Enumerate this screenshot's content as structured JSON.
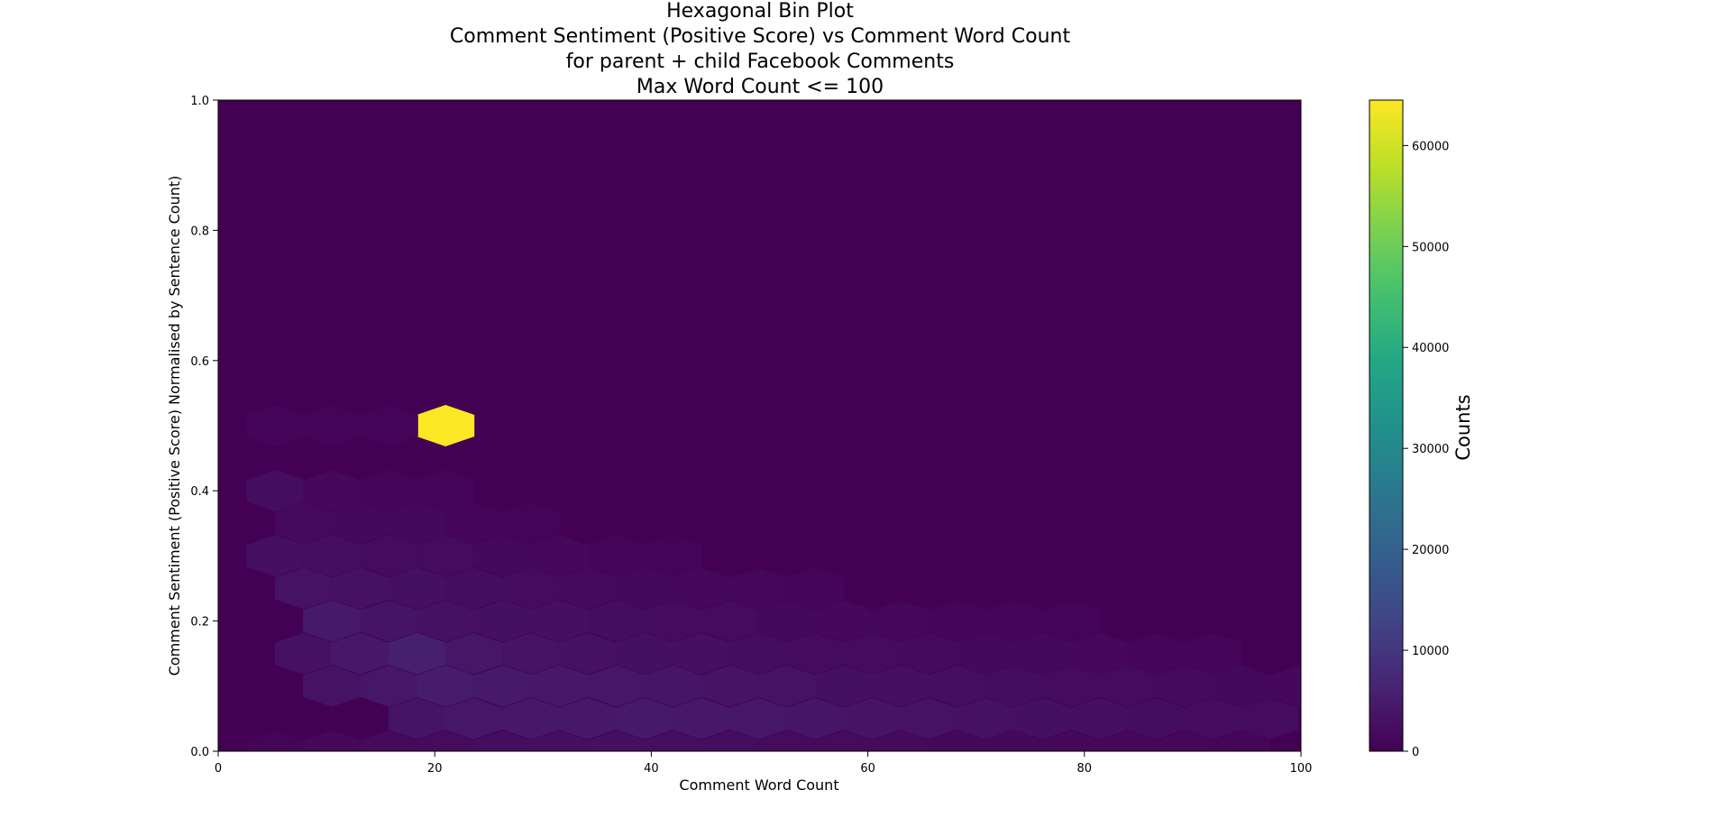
{
  "chart_data": {
    "type": "heatmap",
    "subtype": "hexbin",
    "title_lines": [
      "Hexagonal Bin Plot",
      "Comment Sentiment (Positive Score) vs Comment Word Count",
      "for parent + child Facebook Comments",
      "Max Word Count <= 100"
    ],
    "xlabel": "Comment Word Count",
    "ylabel": "Comment Sentiment (Positive Score) Normalised by Sentence Count)",
    "xlim": [
      0,
      100
    ],
    "ylim": [
      0,
      1.0
    ],
    "xticks": [
      0,
      20,
      40,
      60,
      80,
      100
    ],
    "yticks": [
      0.0,
      0.2,
      0.4,
      0.6,
      0.8,
      1.0
    ],
    "ytick_labels": [
      "0.0",
      "0.2",
      "0.4",
      "0.6",
      "0.8",
      "1.0"
    ],
    "grid": false,
    "colormap": "viridis",
    "colorbar": {
      "label": "Counts",
      "range": [
        0,
        64500
      ],
      "ticks": [
        0,
        10000,
        20000,
        30000,
        40000,
        50000,
        60000
      ]
    },
    "bins": [
      {
        "x": 21,
        "y": 0.5,
        "count": 64500
      },
      {
        "x": 5.3,
        "y": 0.5,
        "count": 900
      },
      {
        "x": 10.5,
        "y": 0.5,
        "count": 800
      },
      {
        "x": 15.8,
        "y": 0.5,
        "count": 700
      },
      {
        "x": 5.3,
        "y": 0.4,
        "count": 2200
      },
      {
        "x": 10.5,
        "y": 0.4,
        "count": 1200
      },
      {
        "x": 15.8,
        "y": 0.4,
        "count": 1000
      },
      {
        "x": 21,
        "y": 0.4,
        "count": 900
      },
      {
        "x": 7.9,
        "y": 0.35,
        "count": 1600
      },
      {
        "x": 13.1,
        "y": 0.35,
        "count": 1400
      },
      {
        "x": 18.4,
        "y": 0.35,
        "count": 1400
      },
      {
        "x": 23.6,
        "y": 0.35,
        "count": 1000
      },
      {
        "x": 28.9,
        "y": 0.35,
        "count": 800
      },
      {
        "x": 5.3,
        "y": 0.3,
        "count": 2600
      },
      {
        "x": 10.5,
        "y": 0.3,
        "count": 2400
      },
      {
        "x": 15.8,
        "y": 0.3,
        "count": 2000
      },
      {
        "x": 21,
        "y": 0.3,
        "count": 1800
      },
      {
        "x": 26.3,
        "y": 0.3,
        "count": 1500
      },
      {
        "x": 31.5,
        "y": 0.3,
        "count": 1300
      },
      {
        "x": 36.8,
        "y": 0.3,
        "count": 1000
      },
      {
        "x": 42,
        "y": 0.3,
        "count": 800
      },
      {
        "x": 7.9,
        "y": 0.25,
        "count": 3200
      },
      {
        "x": 13.1,
        "y": 0.25,
        "count": 2900
      },
      {
        "x": 18.4,
        "y": 0.25,
        "count": 2700
      },
      {
        "x": 23.6,
        "y": 0.25,
        "count": 2300
      },
      {
        "x": 28.9,
        "y": 0.25,
        "count": 2000
      },
      {
        "x": 34.1,
        "y": 0.25,
        "count": 1700
      },
      {
        "x": 39.4,
        "y": 0.25,
        "count": 1500
      },
      {
        "x": 44.6,
        "y": 0.25,
        "count": 1300
      },
      {
        "x": 49.9,
        "y": 0.25,
        "count": 1100
      },
      {
        "x": 55.1,
        "y": 0.25,
        "count": 900
      },
      {
        "x": 10.5,
        "y": 0.2,
        "count": 4500
      },
      {
        "x": 15.8,
        "y": 0.2,
        "count": 3500
      },
      {
        "x": 21,
        "y": 0.2,
        "count": 3000
      },
      {
        "x": 26.3,
        "y": 0.2,
        "count": 2800
      },
      {
        "x": 31.5,
        "y": 0.2,
        "count": 2500
      },
      {
        "x": 36.8,
        "y": 0.2,
        "count": 2200
      },
      {
        "x": 42,
        "y": 0.2,
        "count": 2000
      },
      {
        "x": 47.3,
        "y": 0.2,
        "count": 1800
      },
      {
        "x": 52.5,
        "y": 0.2,
        "count": 1500
      },
      {
        "x": 57.8,
        "y": 0.2,
        "count": 1300
      },
      {
        "x": 63,
        "y": 0.2,
        "count": 1100
      },
      {
        "x": 68.3,
        "y": 0.2,
        "count": 1000
      },
      {
        "x": 73.5,
        "y": 0.2,
        "count": 900
      },
      {
        "x": 78.8,
        "y": 0.2,
        "count": 800
      },
      {
        "x": 7.9,
        "y": 0.15,
        "count": 3000
      },
      {
        "x": 13.1,
        "y": 0.15,
        "count": 4200
      },
      {
        "x": 18.4,
        "y": 0.15,
        "count": 5500
      },
      {
        "x": 23.6,
        "y": 0.15,
        "count": 3800
      },
      {
        "x": 28.9,
        "y": 0.15,
        "count": 3300
      },
      {
        "x": 34.1,
        "y": 0.15,
        "count": 3000
      },
      {
        "x": 39.4,
        "y": 0.15,
        "count": 2800
      },
      {
        "x": 44.6,
        "y": 0.15,
        "count": 2500
      },
      {
        "x": 49.9,
        "y": 0.15,
        "count": 2300
      },
      {
        "x": 55.1,
        "y": 0.15,
        "count": 2000
      },
      {
        "x": 60.4,
        "y": 0.15,
        "count": 1800
      },
      {
        "x": 65.6,
        "y": 0.15,
        "count": 1700
      },
      {
        "x": 70.9,
        "y": 0.15,
        "count": 1500
      },
      {
        "x": 76.1,
        "y": 0.15,
        "count": 1400
      },
      {
        "x": 81.4,
        "y": 0.15,
        "count": 1200
      },
      {
        "x": 86.6,
        "y": 0.15,
        "count": 1000
      },
      {
        "x": 91.9,
        "y": 0.15,
        "count": 900
      },
      {
        "x": 10.5,
        "y": 0.1,
        "count": 3200
      },
      {
        "x": 15.8,
        "y": 0.1,
        "count": 4000
      },
      {
        "x": 21,
        "y": 0.1,
        "count": 4800
      },
      {
        "x": 26.3,
        "y": 0.1,
        "count": 4500
      },
      {
        "x": 31.5,
        "y": 0.1,
        "count": 4200
      },
      {
        "x": 36.8,
        "y": 0.1,
        "count": 3900
      },
      {
        "x": 42,
        "y": 0.1,
        "count": 3700
      },
      {
        "x": 47.3,
        "y": 0.1,
        "count": 3400
      },
      {
        "x": 52.5,
        "y": 0.1,
        "count": 3100
      },
      {
        "x": 57.8,
        "y": 0.1,
        "count": 2800
      },
      {
        "x": 63,
        "y": 0.1,
        "count": 2600
      },
      {
        "x": 68.3,
        "y": 0.1,
        "count": 2400
      },
      {
        "x": 73.5,
        "y": 0.1,
        "count": 2200
      },
      {
        "x": 78.8,
        "y": 0.1,
        "count": 2000
      },
      {
        "x": 84,
        "y": 0.1,
        "count": 1800
      },
      {
        "x": 89.3,
        "y": 0.1,
        "count": 1600
      },
      {
        "x": 94.5,
        "y": 0.1,
        "count": 1400
      },
      {
        "x": 99.8,
        "y": 0.1,
        "count": 1200
      },
      {
        "x": 18.4,
        "y": 0.05,
        "count": 3500
      },
      {
        "x": 23.6,
        "y": 0.05,
        "count": 4000
      },
      {
        "x": 28.9,
        "y": 0.05,
        "count": 4200
      },
      {
        "x": 34.1,
        "y": 0.05,
        "count": 4300
      },
      {
        "x": 39.4,
        "y": 0.05,
        "count": 4500
      },
      {
        "x": 44.6,
        "y": 0.05,
        "count": 4300
      },
      {
        "x": 49.9,
        "y": 0.05,
        "count": 4000
      },
      {
        "x": 55.1,
        "y": 0.05,
        "count": 3700
      },
      {
        "x": 60.4,
        "y": 0.05,
        "count": 3400
      },
      {
        "x": 65.6,
        "y": 0.05,
        "count": 3100
      },
      {
        "x": 70.9,
        "y": 0.05,
        "count": 2900
      },
      {
        "x": 76.1,
        "y": 0.05,
        "count": 2700
      },
      {
        "x": 81.4,
        "y": 0.05,
        "count": 2500
      },
      {
        "x": 86.6,
        "y": 0.05,
        "count": 2300
      },
      {
        "x": 91.9,
        "y": 0.05,
        "count": 2100
      },
      {
        "x": 97.1,
        "y": 0.05,
        "count": 1900
      },
      {
        "x": 5.3,
        "y": 0.0,
        "count": 800
      },
      {
        "x": 10.5,
        "y": 0.0,
        "count": 1200
      },
      {
        "x": 15.8,
        "y": 0.0,
        "count": 1600
      },
      {
        "x": 21,
        "y": 0.0,
        "count": 2000
      },
      {
        "x": 26.3,
        "y": 0.0,
        "count": 2300
      },
      {
        "x": 31.5,
        "y": 0.0,
        "count": 2400
      },
      {
        "x": 36.8,
        "y": 0.0,
        "count": 2500
      },
      {
        "x": 42,
        "y": 0.0,
        "count": 2400
      },
      {
        "x": 47.3,
        "y": 0.0,
        "count": 2200
      },
      {
        "x": 52.5,
        "y": 0.0,
        "count": 2000
      },
      {
        "x": 57.8,
        "y": 0.0,
        "count": 1800
      },
      {
        "x": 63,
        "y": 0.0,
        "count": 1600
      },
      {
        "x": 68.3,
        "y": 0.0,
        "count": 1500
      },
      {
        "x": 73.5,
        "y": 0.0,
        "count": 1400
      },
      {
        "x": 78.8,
        "y": 0.0,
        "count": 1300
      },
      {
        "x": 84,
        "y": 0.0,
        "count": 1200
      },
      {
        "x": 89.3,
        "y": 0.0,
        "count": 1100
      },
      {
        "x": 94.5,
        "y": 0.0,
        "count": 1000
      }
    ]
  }
}
